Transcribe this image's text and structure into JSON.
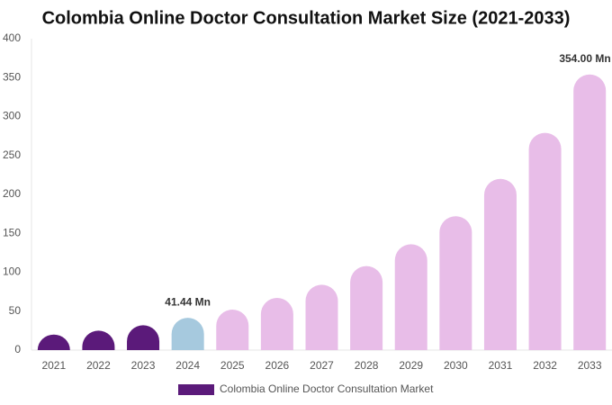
{
  "chart_data": {
    "type": "bar",
    "title": "Colombia Online Doctor Consultation Market Size (2021-2033)",
    "categories": [
      "2021",
      "2022",
      "2023",
      "2024",
      "2025",
      "2026",
      "2027",
      "2028",
      "2029",
      "2030",
      "2031",
      "2032",
      "2033"
    ],
    "series": [
      {
        "name": "Colombia Online Doctor Consultation Market",
        "color": "#5b1a7a",
        "values": [
          20,
          25,
          32,
          41.44,
          52,
          67,
          84,
          108,
          136,
          172,
          220,
          279,
          354
        ],
        "value_labels": [
          null,
          null,
          null,
          "41.44 Mn",
          null,
          null,
          null,
          null,
          null,
          null,
          null,
          null,
          "354.00 Mn"
        ],
        "bar_colors": [
          "#5b1a7a",
          "#5b1a7a",
          "#5b1a7a",
          "#a6c9de",
          "#e8bde8",
          "#e8bde8",
          "#e8bde8",
          "#e8bde8",
          "#e8bde8",
          "#e8bde8",
          "#e8bde8",
          "#e8bde8",
          "#e8bde8"
        ]
      }
    ],
    "ylim": [
      0,
      400
    ],
    "yticks": [
      0,
      50,
      100,
      150,
      200,
      250,
      300,
      350,
      400
    ],
    "grid": false
  }
}
